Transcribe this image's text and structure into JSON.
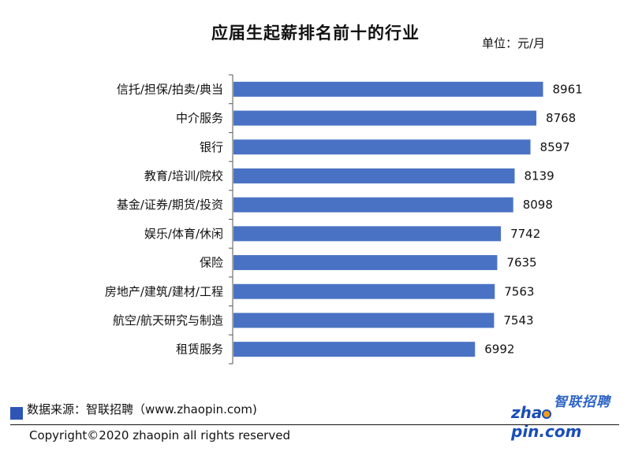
{
  "chart_data": {
    "type": "bar",
    "orientation": "horizontal",
    "title": "应届生起薪排名前十的行业",
    "unit_label": "单位：元/月",
    "categories": [
      "信托/担保/拍卖/典当",
      "中介服务",
      "银行",
      "教育/培训/院校",
      "基金/证券/期货/投资",
      "娱乐/体育/休闲",
      "保险",
      "房地产/建筑/建材/工程",
      "航空/航天研究与制造",
      "租赁服务"
    ],
    "values": [
      8961,
      8768,
      8597,
      8139,
      8098,
      7742,
      7635,
      7563,
      7543,
      6992
    ],
    "xlim": [
      0,
      10000
    ],
    "bar_color": "#4a72c4",
    "data_labels": true,
    "grid": false,
    "legend": "none"
  },
  "footer": {
    "source": "数据来源：智联招聘（www.zhaopin.com)",
    "copyright": "Copyright©2020 zhaopin all rights reserved"
  },
  "logo": {
    "cn": "智联招聘",
    "en_prefix": "zha",
    "en_suffix": "pin.com"
  }
}
